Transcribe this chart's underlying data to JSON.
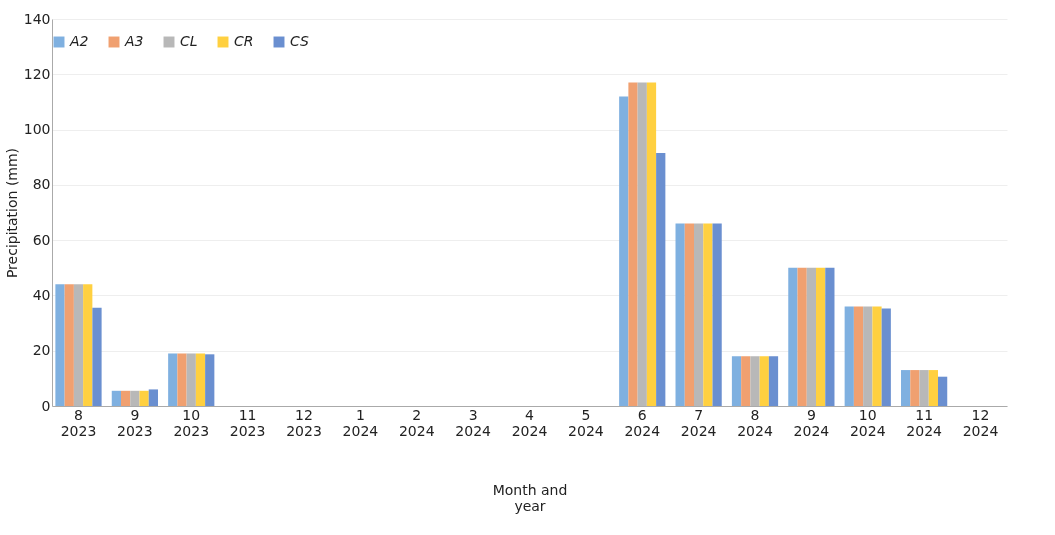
{
  "chart_data": {
    "type": "bar",
    "ylabel": "Precipitation (mm)",
    "xlabel": "Month and year",
    "categories": [
      "8 2023",
      "9 2023",
      "10 2023",
      "11 2023",
      "12 2023",
      "1 2024",
      "2 2024",
      "3 2024",
      "4 2024",
      "5 2024",
      "6 2024",
      "7 2024",
      "8 2024",
      "9 2024",
      "10 2024",
      "11 2024",
      "12 2024"
    ],
    "series": [
      {
        "name": "A2",
        "color": "#7fb0e0",
        "values": [
          44,
          5.5,
          19,
          null,
          null,
          null,
          null,
          null,
          null,
          null,
          112,
          66,
          18,
          50,
          36,
          13,
          null
        ]
      },
      {
        "name": "A3",
        "color": "#f0a070",
        "values": [
          44,
          5.5,
          19,
          null,
          null,
          null,
          null,
          null,
          null,
          null,
          117,
          66,
          18,
          50,
          36,
          13,
          null
        ]
      },
      {
        "name": "CL",
        "color": "#b8b8b8",
        "values": [
          44,
          5.5,
          19,
          null,
          null,
          null,
          null,
          null,
          null,
          null,
          117,
          66,
          18,
          50,
          36,
          13,
          null
        ]
      },
      {
        "name": "CR",
        "color": "#ffd040",
        "values": [
          44,
          5.5,
          19,
          null,
          null,
          null,
          null,
          null,
          null,
          null,
          117,
          66,
          18,
          50,
          36,
          13,
          null
        ]
      },
      {
        "name": "CS",
        "color": "#6a8fd0",
        "values": [
          35.5,
          6,
          18.7,
          null,
          null,
          null,
          null,
          null,
          null,
          null,
          91.5,
          66,
          18,
          50,
          35.3,
          10.6,
          null
        ]
      }
    ],
    "ylim": [
      0,
      140
    ],
    "yticks": [
      0,
      20,
      40,
      60,
      80,
      100,
      120,
      140
    ],
    "grid": "y",
    "legend": "top"
  }
}
